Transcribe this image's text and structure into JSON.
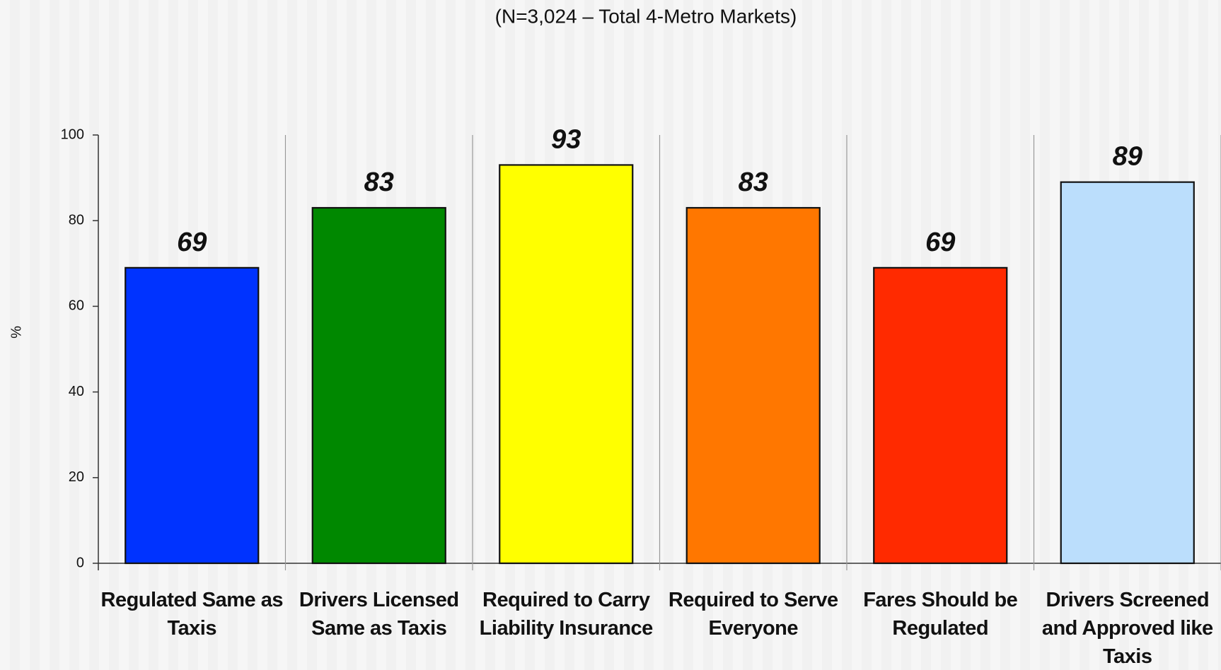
{
  "chart_data": {
    "type": "bar",
    "subtitle": "(N=3,024 – Total 4-Metro Markets)",
    "y_label": "%",
    "categories": [
      "Regulated Same as Taxis",
      "Drivers Licensed Same as Taxis",
      "Required to Carry Liability Insurance",
      "Required to Serve Everyone",
      "Fares Should be Regulated",
      "Drivers Screened and Approved like Taxis"
    ],
    "values": [
      69,
      83,
      93,
      83,
      69,
      89
    ],
    "colors": [
      "#0033ff",
      "#008800",
      "#ffff00",
      "#ff7700",
      "#ff2a00",
      "#bbdefc"
    ],
    "ylim": [
      0,
      100
    ],
    "yticks": [
      0,
      20,
      40,
      60,
      80,
      100
    ]
  }
}
